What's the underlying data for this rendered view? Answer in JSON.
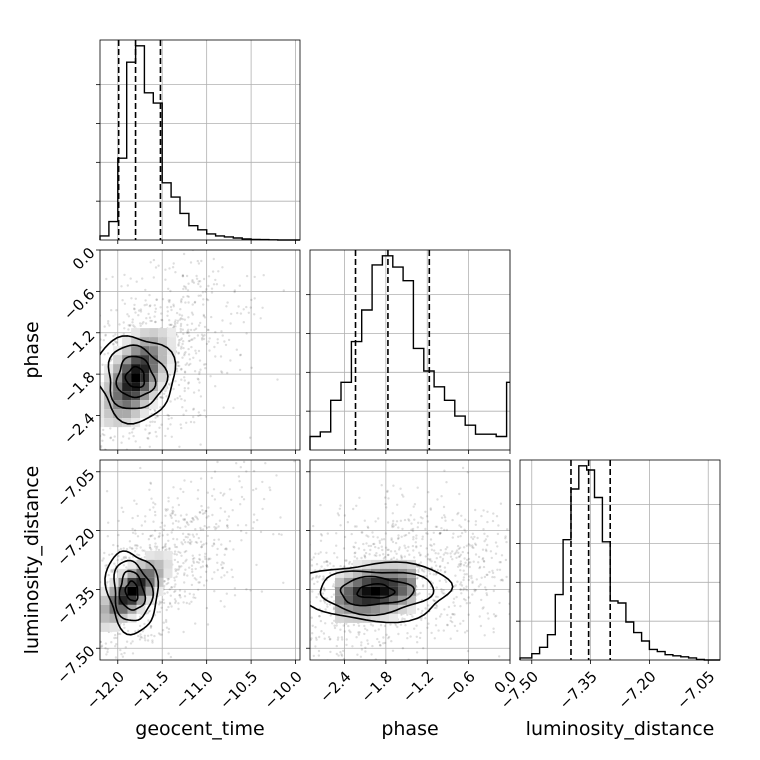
{
  "chart_data": {
    "type": "corner",
    "parameters": [
      "geocent_time",
      "phase",
      "luminosity_distance"
    ],
    "labels": {
      "geocent_time": "geocent_time",
      "phase": "phase",
      "luminosity_distance": "luminosity_distance"
    },
    "ranges": {
      "geocent_time": [
        -12.2,
        -9.95
      ],
      "phase": [
        -2.9,
        0.0
      ],
      "luminosity_distance": [
        -7.53,
        -7.02
      ]
    },
    "ticks": {
      "geocent_time": [
        -12.0,
        -11.5,
        -11.0,
        -10.5,
        -10.0
      ],
      "phase": [
        -2.4,
        -1.8,
        -1.2,
        -0.6,
        0.0
      ],
      "luminosity_distance": [
        -7.5,
        -7.35,
        -7.2,
        -7.05
      ]
    },
    "tick_labels": {
      "geocent_time": [
        "−12.0",
        "−11.5",
        "−11.0",
        "−10.5",
        "−10.0"
      ],
      "phase": [
        "−2.4",
        "−1.8",
        "−1.2",
        "−0.6",
        "0.0"
      ],
      "luminosity_distance": [
        "−7.50",
        "−7.35",
        "−7.20",
        "−7.05"
      ]
    },
    "quantiles": {
      "geocent_time": [
        -11.99,
        -11.8,
        -11.52
      ],
      "phase": [
        -2.24,
        -1.77,
        -1.17
      ],
      "luminosity_distance": [
        -7.4,
        -7.355,
        -7.3
      ]
    },
    "histograms": {
      "geocent_time": {
        "edges": [
          -12.2,
          -12.1,
          -12.0,
          -11.9,
          -11.8,
          -11.7,
          -11.6,
          -11.5,
          -11.4,
          -11.3,
          -11.2,
          -11.1,
          -11.0,
          -10.9,
          -10.8,
          -10.7,
          -10.6,
          -10.5,
          -10.4,
          -10.3,
          -10.2,
          -10.1,
          -10.0,
          -9.95
        ],
        "counts": [
          2,
          9,
          40,
          87,
          95,
          72,
          67,
          28,
          21,
          13,
          7,
          5,
          3,
          2,
          1.5,
          1,
          0.5,
          0.3,
          0.2,
          0.1,
          0,
          0,
          0
        ]
      },
      "phase": {
        "edges": [
          -2.9,
          -2.75,
          -2.6,
          -2.45,
          -2.3,
          -2.15,
          -2.0,
          -1.85,
          -1.7,
          -1.55,
          -1.4,
          -1.25,
          -1.1,
          -0.95,
          -0.8,
          -0.65,
          -0.5,
          -0.35,
          -0.2,
          -0.05,
          0.0
        ],
        "counts": [
          6,
          8,
          22,
          30,
          48,
          62,
          82,
          86,
          81,
          75,
          45,
          35,
          28,
          22,
          15,
          11,
          7,
          7,
          6,
          30
        ]
      },
      "luminosity_distance": {
        "edges": [
          -7.53,
          -7.5,
          -7.48,
          -7.46,
          -7.44,
          -7.42,
          -7.4,
          -7.38,
          -7.36,
          -7.34,
          -7.32,
          -7.3,
          -7.28,
          -7.26,
          -7.24,
          -7.22,
          -7.2,
          -7.18,
          -7.16,
          -7.14,
          -7.12,
          -7.1,
          -7.08,
          -7.06,
          -7.02
        ],
        "counts": [
          1,
          3,
          6,
          12,
          31,
          57,
          81,
          92,
          90,
          77,
          56,
          28,
          27,
          18,
          13,
          9,
          5,
          4,
          2.5,
          2,
          1.5,
          1,
          0.3,
          0
        ]
      }
    },
    "density_peaks": {
      "geocent_time__phase": {
        "x": -11.8,
        "y": -1.85
      },
      "geocent_time__luminosity_distance": {
        "x": -11.84,
        "y": -7.355
      },
      "phase__luminosity_distance": {
        "x": -1.95,
        "y": -7.355
      }
    },
    "grid": true,
    "colors": {
      "line": "#000000",
      "grid": "#b0b0b0",
      "points": "#000000"
    }
  }
}
